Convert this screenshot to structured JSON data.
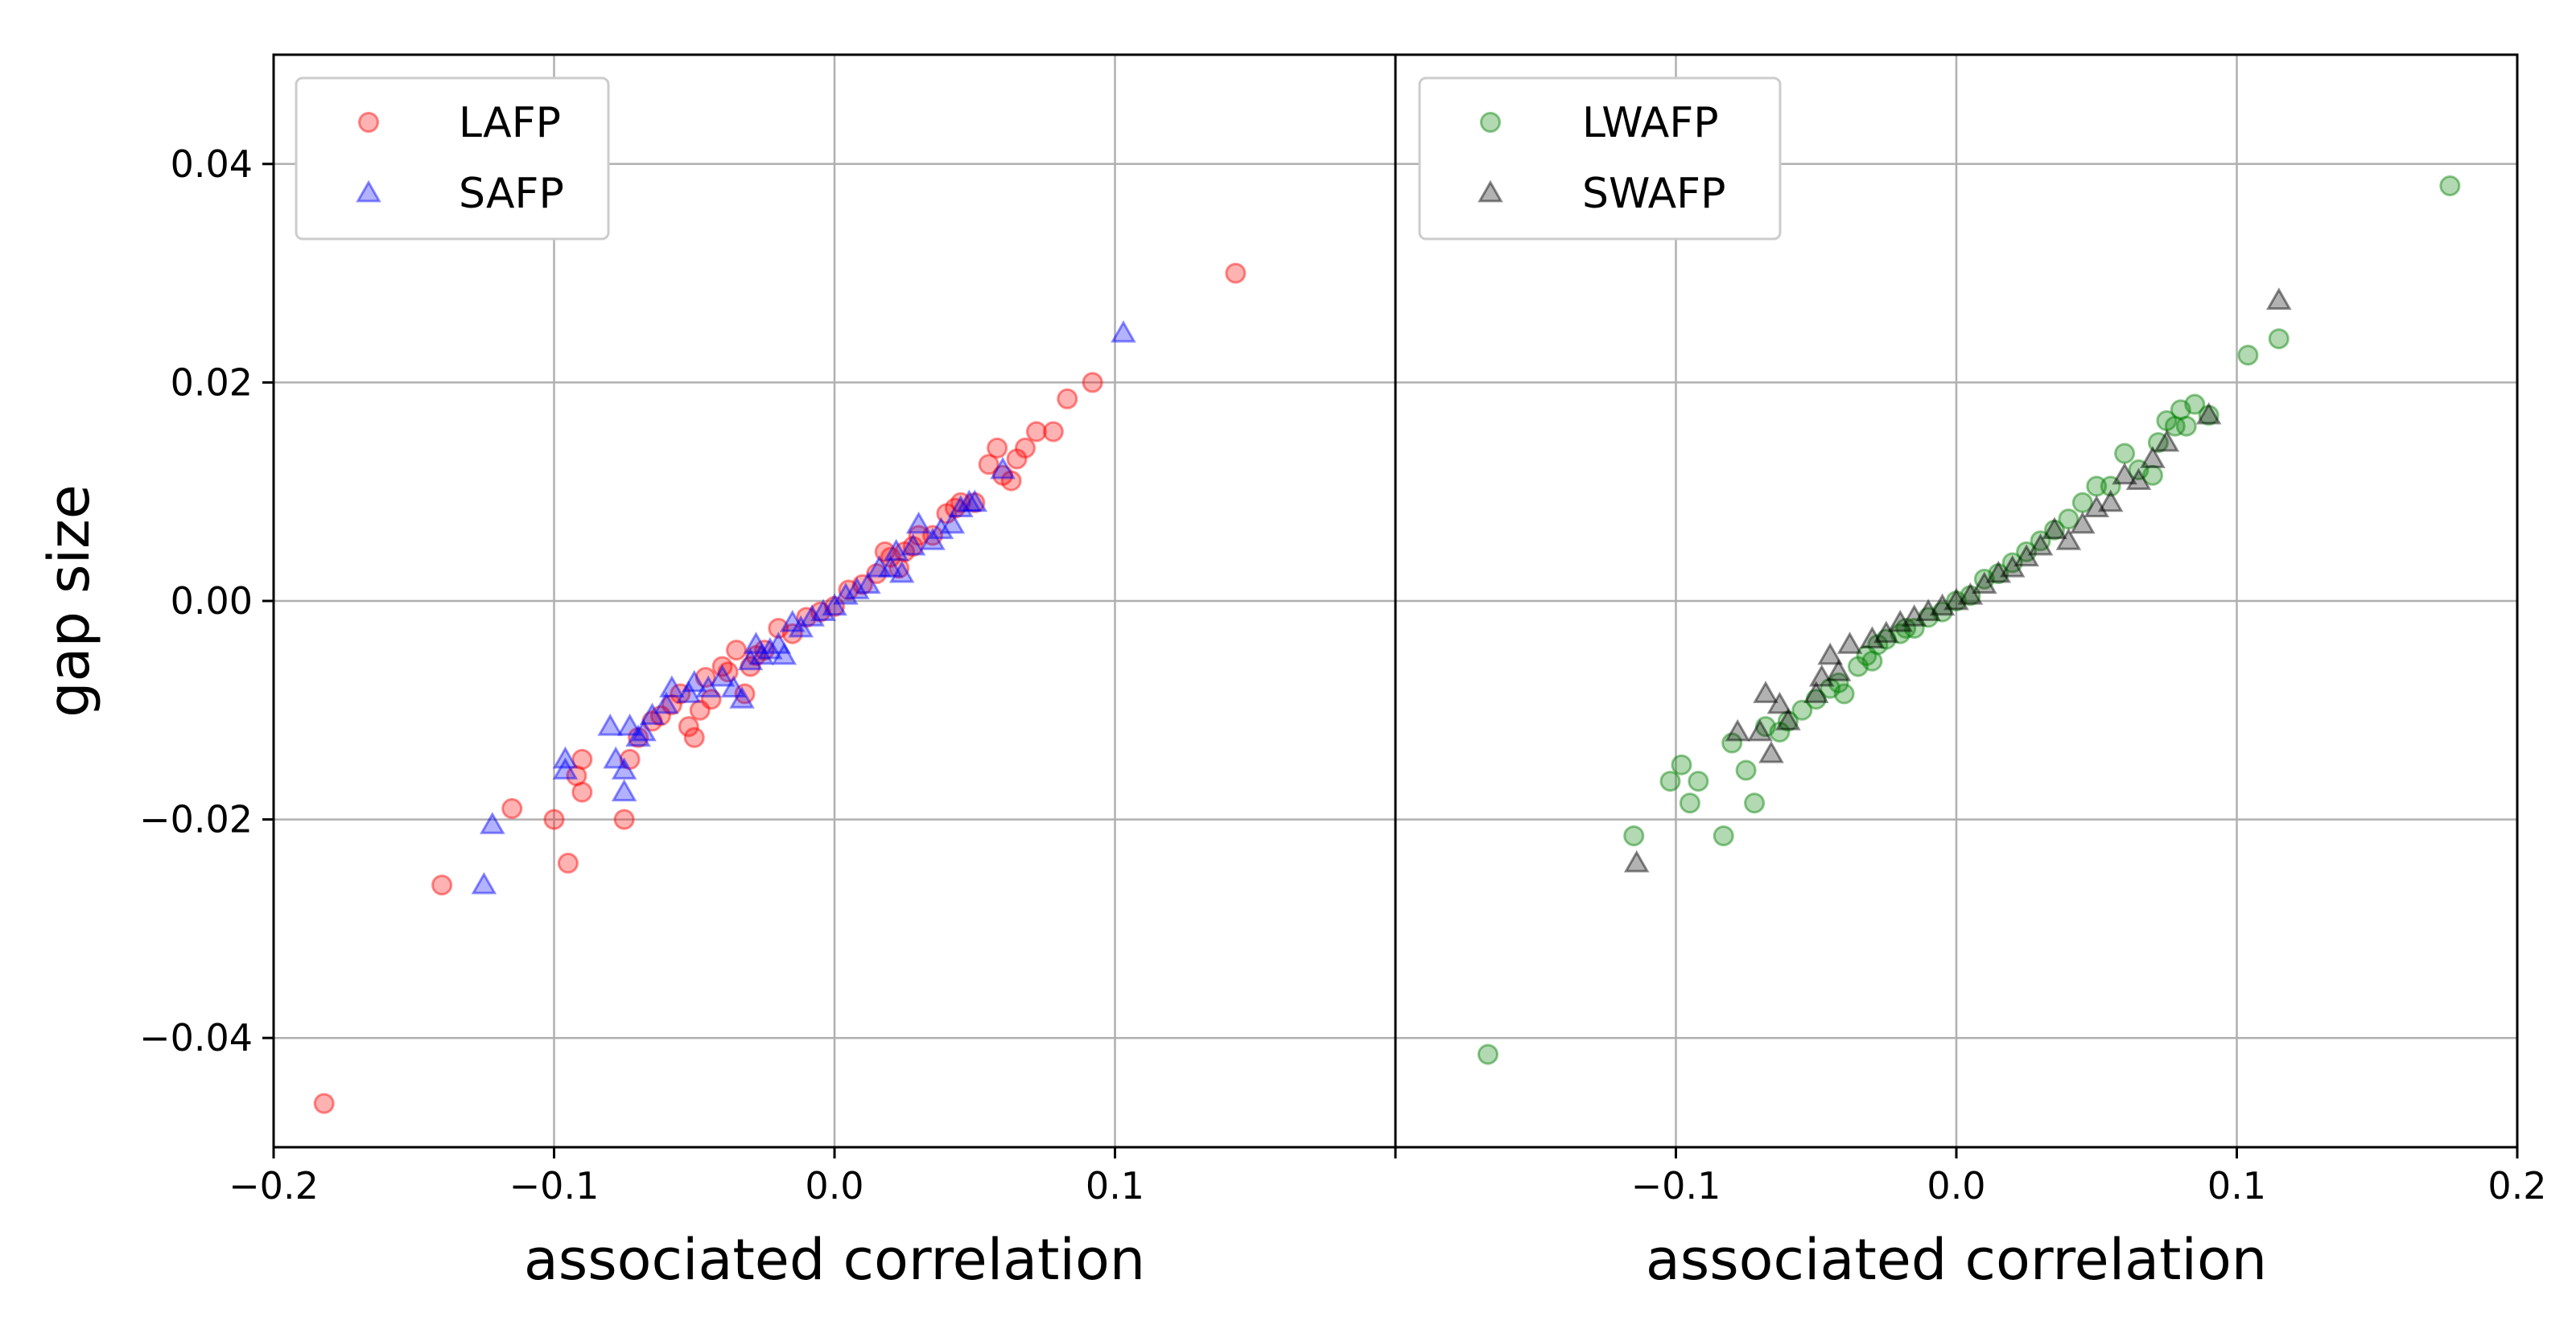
{
  "y_axis_label": "gap size",
  "chart_data": [
    {
      "type": "scatter",
      "xlabel": "associated correlation",
      "ylabel": "gap size",
      "xlim": [
        -0.2,
        0.2
      ],
      "ylim": [
        -0.05,
        0.05
      ],
      "x_ticks": [
        "−0.2",
        "−0.1",
        "0.0",
        "0.1"
      ],
      "y_ticks": [
        "0.04",
        "0.02",
        "0.00",
        "−0.02",
        "−0.04"
      ],
      "grid": true,
      "legend_position": "upper-left",
      "series": [
        {
          "name": "LAFP",
          "marker": "circle",
          "color": "#ff0000",
          "points": [
            [
              -0.182,
              -0.046
            ],
            [
              -0.14,
              -0.026
            ],
            [
              -0.115,
              -0.019
            ],
            [
              -0.1,
              -0.02
            ],
            [
              -0.095,
              -0.024
            ],
            [
              -0.092,
              -0.016
            ],
            [
              -0.09,
              -0.0145
            ],
            [
              -0.09,
              -0.0175
            ],
            [
              -0.075,
              -0.02
            ],
            [
              -0.073,
              -0.0145
            ],
            [
              -0.07,
              -0.0125
            ],
            [
              -0.065,
              -0.011
            ],
            [
              -0.062,
              -0.0105
            ],
            [
              -0.058,
              -0.0095
            ],
            [
              -0.055,
              -0.0085
            ],
            [
              -0.052,
              -0.0115
            ],
            [
              -0.05,
              -0.0125
            ],
            [
              -0.048,
              -0.01
            ],
            [
              -0.046,
              -0.007
            ],
            [
              -0.044,
              -0.009
            ],
            [
              -0.04,
              -0.006
            ],
            [
              -0.038,
              -0.0065
            ],
            [
              -0.035,
              -0.0045
            ],
            [
              -0.032,
              -0.0085
            ],
            [
              -0.03,
              -0.006
            ],
            [
              -0.028,
              -0.005
            ],
            [
              -0.025,
              -0.0045
            ],
            [
              -0.02,
              -0.0025
            ],
            [
              -0.015,
              -0.003
            ],
            [
              -0.01,
              -0.0015
            ],
            [
              -0.005,
              -0.001
            ],
            [
              0.0,
              -0.0005
            ],
            [
              0.005,
              0.001
            ],
            [
              0.01,
              0.0015
            ],
            [
              0.015,
              0.0025
            ],
            [
              0.018,
              0.0045
            ],
            [
              0.02,
              0.004
            ],
            [
              0.023,
              0.003
            ],
            [
              0.025,
              0.0045
            ],
            [
              0.028,
              0.005
            ],
            [
              0.03,
              0.006
            ],
            [
              0.035,
              0.006
            ],
            [
              0.04,
              0.008
            ],
            [
              0.043,
              0.0085
            ],
            [
              0.045,
              0.009
            ],
            [
              0.05,
              0.009
            ],
            [
              0.055,
              0.0125
            ],
            [
              0.058,
              0.014
            ],
            [
              0.06,
              0.0115
            ],
            [
              0.063,
              0.011
            ],
            [
              0.065,
              0.013
            ],
            [
              0.068,
              0.014
            ],
            [
              0.072,
              0.0155
            ],
            [
              0.078,
              0.0155
            ],
            [
              0.083,
              0.0185
            ],
            [
              0.092,
              0.02
            ],
            [
              0.143,
              0.03
            ]
          ]
        },
        {
          "name": "SAFP",
          "marker": "triangle",
          "color": "#0000ff",
          "points": [
            [
              -0.125,
              -0.026
            ],
            [
              -0.122,
              -0.0205
            ],
            [
              -0.096,
              -0.0145
            ],
            [
              -0.096,
              -0.0155
            ],
            [
              -0.08,
              -0.0115
            ],
            [
              -0.078,
              -0.0145
            ],
            [
              -0.075,
              -0.0175
            ],
            [
              -0.075,
              -0.0155
            ],
            [
              -0.073,
              -0.0115
            ],
            [
              -0.07,
              -0.0125
            ],
            [
              -0.068,
              -0.012
            ],
            [
              -0.065,
              -0.0105
            ],
            [
              -0.06,
              -0.0095
            ],
            [
              -0.058,
              -0.008
            ],
            [
              -0.052,
              -0.0085
            ],
            [
              -0.05,
              -0.0075
            ],
            [
              -0.045,
              -0.008
            ],
            [
              -0.04,
              -0.007
            ],
            [
              -0.036,
              -0.008
            ],
            [
              -0.033,
              -0.009
            ],
            [
              -0.03,
              -0.0055
            ],
            [
              -0.028,
              -0.004
            ],
            [
              -0.026,
              -0.005
            ],
            [
              -0.023,
              -0.0045
            ],
            [
              -0.02,
              -0.004
            ],
            [
              -0.018,
              -0.005
            ],
            [
              -0.015,
              -0.002
            ],
            [
              -0.012,
              -0.0025
            ],
            [
              -0.008,
              -0.0015
            ],
            [
              -0.004,
              -0.001
            ],
            [
              0.0,
              -0.0005
            ],
            [
              0.004,
              0.0005
            ],
            [
              0.008,
              0.001
            ],
            [
              0.012,
              0.0015
            ],
            [
              0.016,
              0.003
            ],
            [
              0.02,
              0.003
            ],
            [
              0.022,
              0.0045
            ],
            [
              0.024,
              0.0025
            ],
            [
              0.028,
              0.005
            ],
            [
              0.03,
              0.007
            ],
            [
              0.035,
              0.0055
            ],
            [
              0.038,
              0.0065
            ],
            [
              0.042,
              0.007
            ],
            [
              0.045,
              0.0085
            ],
            [
              0.048,
              0.009
            ],
            [
              0.05,
              0.009
            ],
            [
              0.06,
              0.012
            ],
            [
              0.103,
              0.0245
            ]
          ]
        }
      ]
    },
    {
      "type": "scatter",
      "xlabel": "associated correlation",
      "ylabel": "",
      "xlim": [
        -0.2,
        0.2
      ],
      "ylim": [
        -0.05,
        0.05
      ],
      "x_ticks": [
        "−0.1",
        "0.0",
        "0.1",
        "0.2"
      ],
      "y_ticks": [],
      "grid": true,
      "legend_position": "upper-left",
      "series": [
        {
          "name": "LWAFP",
          "marker": "circle",
          "color": "#008000",
          "points": [
            [
              -0.167,
              -0.0415
            ],
            [
              -0.115,
              -0.0215
            ],
            [
              -0.102,
              -0.0165
            ],
            [
              -0.098,
              -0.015
            ],
            [
              -0.095,
              -0.0185
            ],
            [
              -0.092,
              -0.0165
            ],
            [
              -0.083,
              -0.0215
            ],
            [
              -0.08,
              -0.013
            ],
            [
              -0.075,
              -0.0155
            ],
            [
              -0.072,
              -0.0185
            ],
            [
              -0.068,
              -0.0115
            ],
            [
              -0.063,
              -0.012
            ],
            [
              -0.06,
              -0.011
            ],
            [
              -0.055,
              -0.01
            ],
            [
              -0.05,
              -0.009
            ],
            [
              -0.045,
              -0.008
            ],
            [
              -0.042,
              -0.0075
            ],
            [
              -0.04,
              -0.0085
            ],
            [
              -0.035,
              -0.006
            ],
            [
              -0.032,
              -0.005
            ],
            [
              -0.03,
              -0.0055
            ],
            [
              -0.028,
              -0.004
            ],
            [
              -0.025,
              -0.0035
            ],
            [
              -0.02,
              -0.003
            ],
            [
              -0.018,
              -0.0025
            ],
            [
              -0.015,
              -0.0025
            ],
            [
              -0.01,
              -0.0015
            ],
            [
              -0.005,
              -0.001
            ],
            [
              0.0,
              0.0
            ],
            [
              0.005,
              0.0005
            ],
            [
              0.01,
              0.002
            ],
            [
              0.015,
              0.0025
            ],
            [
              0.02,
              0.0035
            ],
            [
              0.025,
              0.0045
            ],
            [
              0.03,
              0.0055
            ],
            [
              0.035,
              0.0065
            ],
            [
              0.04,
              0.0075
            ],
            [
              0.045,
              0.009
            ],
            [
              0.05,
              0.0105
            ],
            [
              0.055,
              0.0105
            ],
            [
              0.06,
              0.0135
            ],
            [
              0.065,
              0.012
            ],
            [
              0.07,
              0.0115
            ],
            [
              0.072,
              0.0145
            ],
            [
              0.075,
              0.0165
            ],
            [
              0.078,
              0.016
            ],
            [
              0.08,
              0.0175
            ],
            [
              0.082,
              0.016
            ],
            [
              0.085,
              0.018
            ],
            [
              0.09,
              0.017
            ],
            [
              0.104,
              0.0225
            ],
            [
              0.115,
              0.024
            ],
            [
              0.176,
              0.038
            ]
          ]
        },
        {
          "name": "SWAFP",
          "marker": "triangle",
          "color": "#000000",
          "points": [
            [
              -0.114,
              -0.024
            ],
            [
              -0.078,
              -0.012
            ],
            [
              -0.07,
              -0.012
            ],
            [
              -0.068,
              -0.0085
            ],
            [
              -0.066,
              -0.014
            ],
            [
              -0.063,
              -0.0095
            ],
            [
              -0.06,
              -0.011
            ],
            [
              -0.05,
              -0.0085
            ],
            [
              -0.048,
              -0.007
            ],
            [
              -0.045,
              -0.005
            ],
            [
              -0.042,
              -0.0065
            ],
            [
              -0.038,
              -0.004
            ],
            [
              -0.03,
              -0.0035
            ],
            [
              -0.025,
              -0.003
            ],
            [
              -0.02,
              -0.002
            ],
            [
              -0.015,
              -0.0015
            ],
            [
              -0.01,
              -0.001
            ],
            [
              -0.005,
              -0.0005
            ],
            [
              0.0,
              0.0
            ],
            [
              0.005,
              0.0005
            ],
            [
              0.01,
              0.0015
            ],
            [
              0.015,
              0.0025
            ],
            [
              0.02,
              0.003
            ],
            [
              0.025,
              0.004
            ],
            [
              0.03,
              0.005
            ],
            [
              0.035,
              0.0065
            ],
            [
              0.04,
              0.0055
            ],
            [
              0.045,
              0.007
            ],
            [
              0.05,
              0.0085
            ],
            [
              0.055,
              0.009
            ],
            [
              0.06,
              0.0115
            ],
            [
              0.065,
              0.011
            ],
            [
              0.07,
              0.013
            ],
            [
              0.075,
              0.0145
            ],
            [
              0.09,
              0.017
            ],
            [
              0.115,
              0.0275
            ]
          ]
        }
      ]
    }
  ]
}
